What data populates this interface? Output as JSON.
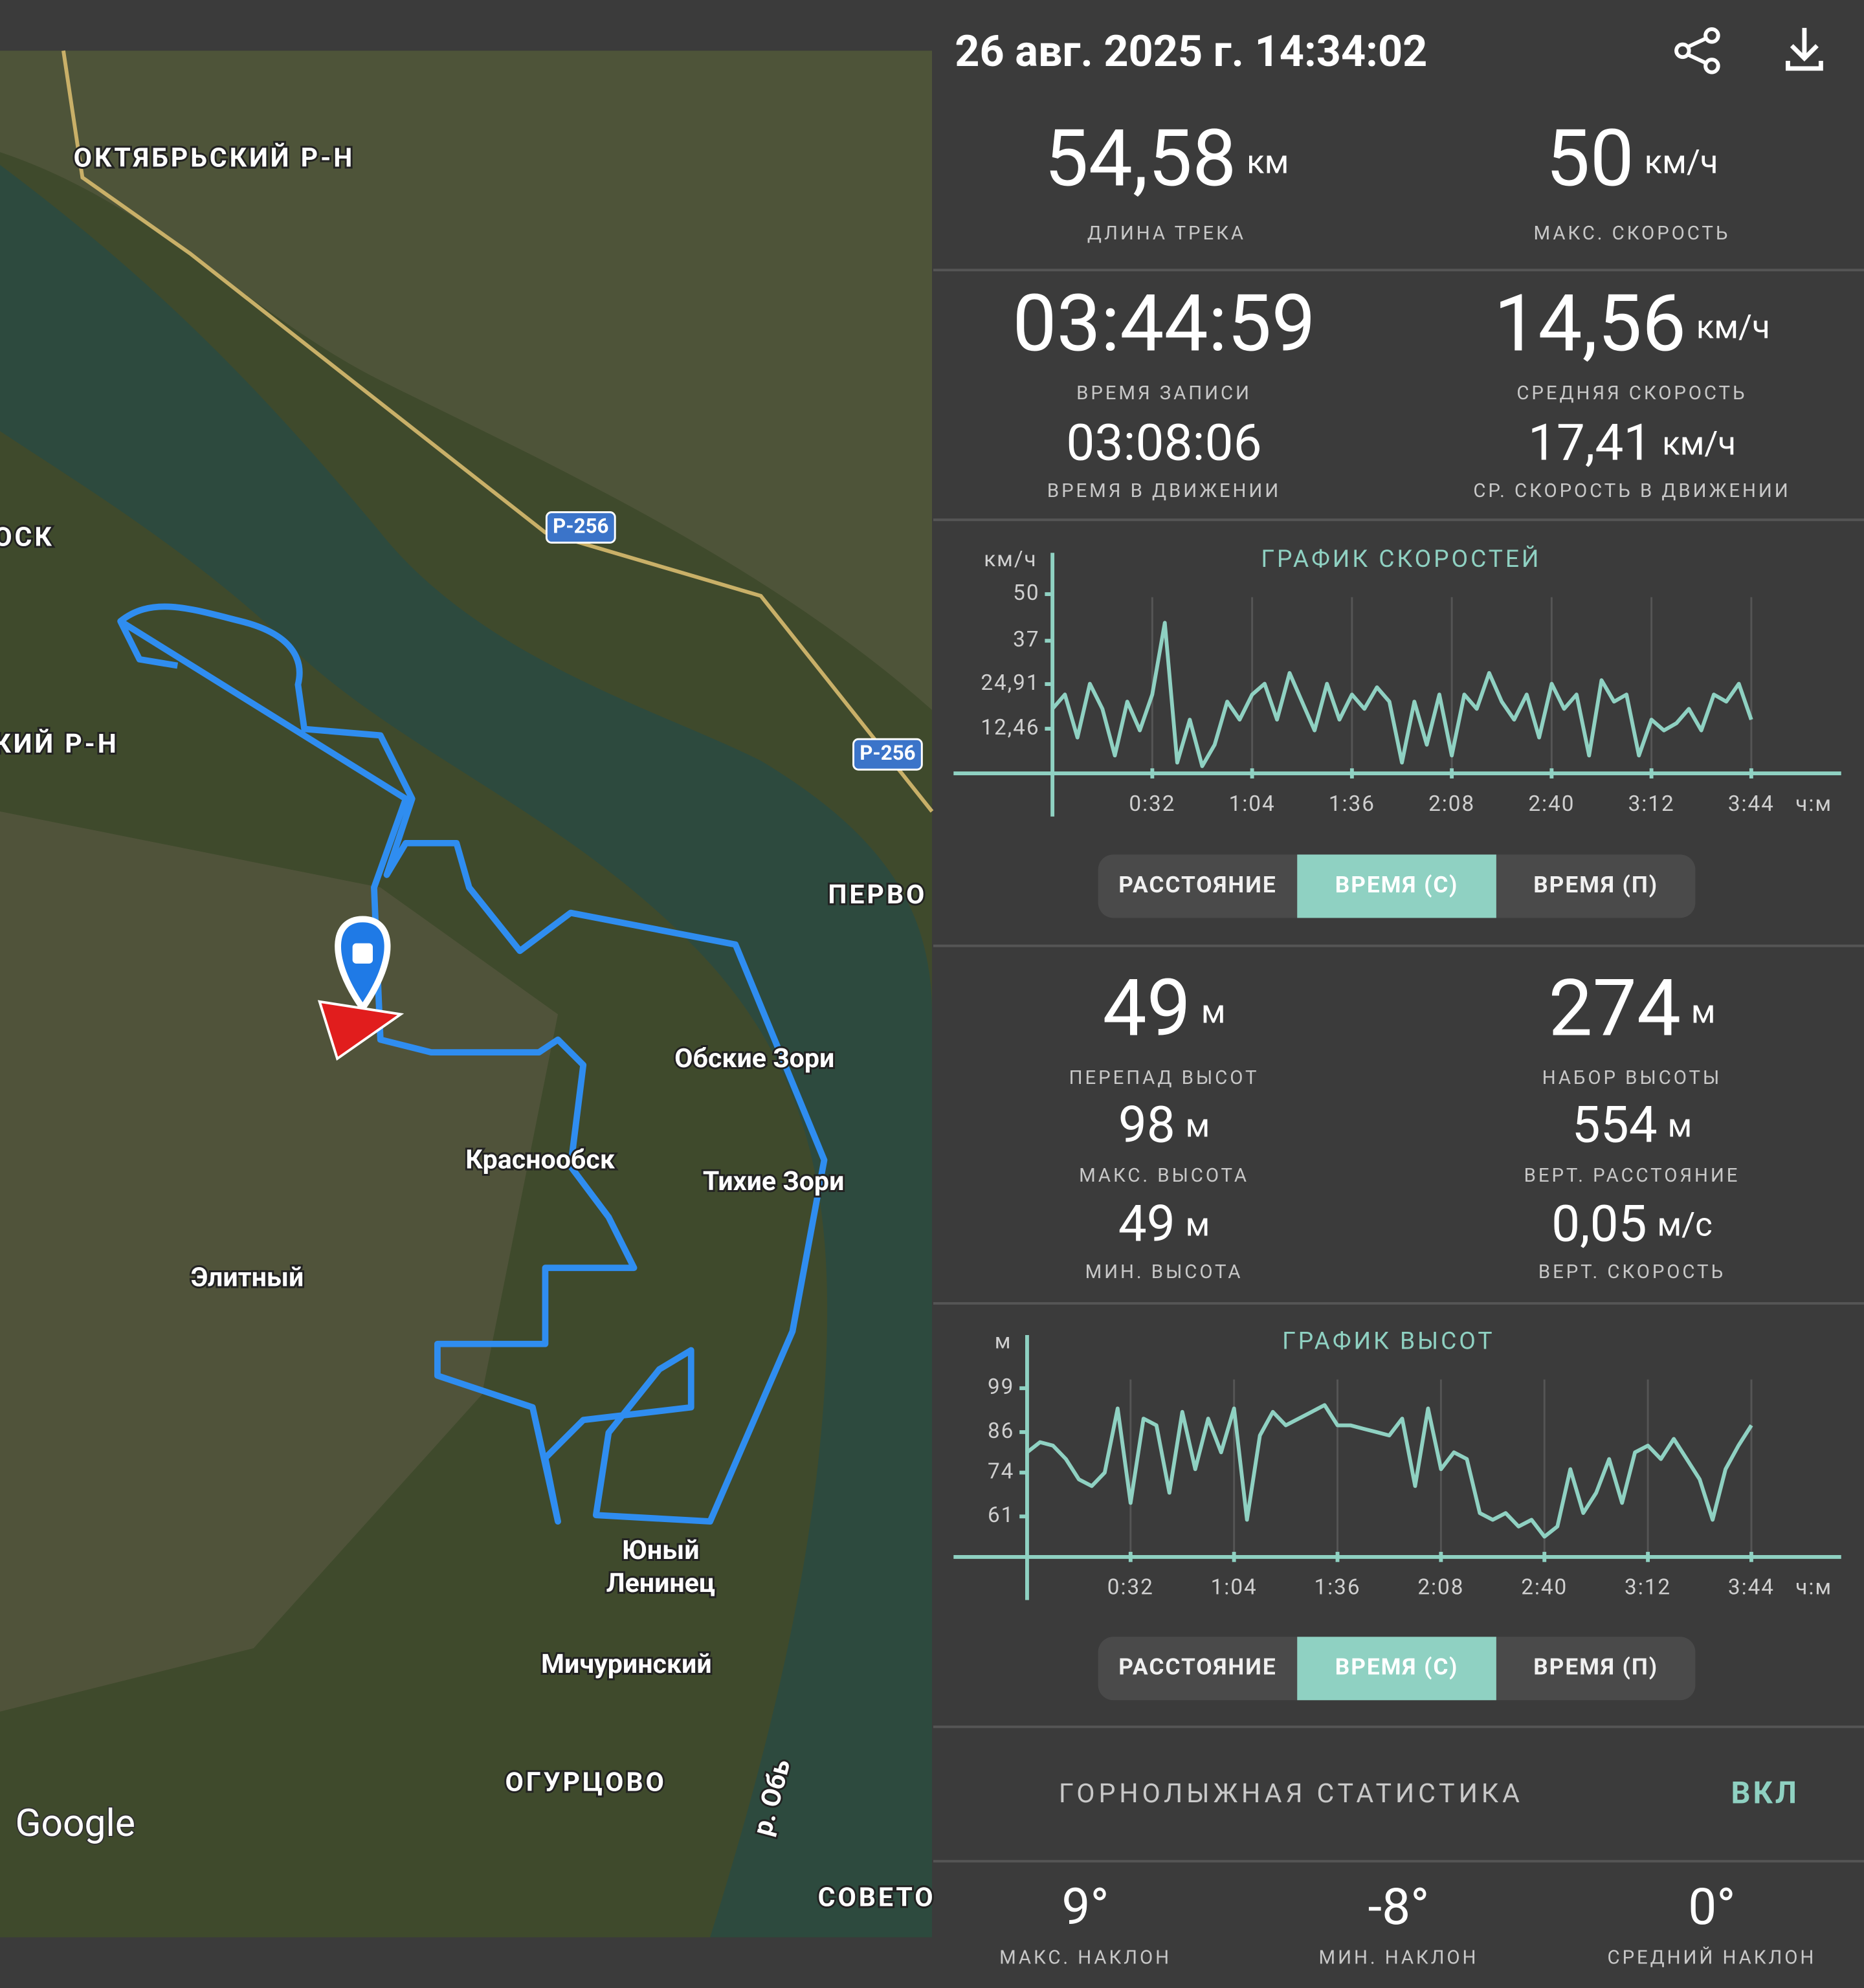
{
  "header": {
    "datetime": "26 авг. 2025 г. 14:34:02"
  },
  "map": {
    "labels": [
      "ОКТЯБРЬСКИЙ Р-Н",
      "ОСК",
      "КИЙ Р-Н",
      "ПЕРВО",
      "Обские Зори",
      "Краснообск",
      "Тихие Зори",
      "Элитный",
      "Юный",
      "Ленинец",
      "Мичуринский",
      "ОГУРЦОВО",
      "р. Обь",
      "СОВЕТО"
    ],
    "road_labels": [
      "Р-256",
      "Р-256"
    ],
    "logo": "Google"
  },
  "track_stats": [
    {
      "value": "54,58",
      "unit": "км",
      "label": "ДЛИНА ТРЕКА"
    },
    {
      "value": "50",
      "unit": "км/ч",
      "label": "МАКС. СКОРОСТЬ"
    },
    {
      "value": "03:44:59",
      "label": "ВРЕМЯ ЗАПИСИ"
    },
    {
      "value": "14,56",
      "unit": "км/ч",
      "label": "СРЕДНЯЯ СКОРОСТЬ"
    },
    {
      "value": "03:08:06",
      "label": "ВРЕМЯ В ДВИЖЕНИИ"
    },
    {
      "value": "17,41",
      "unit": "км/ч",
      "label": "СР. СКОРОСТЬ В ДВИЖЕНИИ"
    }
  ],
  "speed_chart": {
    "type": "line",
    "title": "ГРАФИК СКОРОСТЕЙ",
    "y_unit": "км/ч",
    "x_unit": "ч:м",
    "color": "#8fd1c2",
    "x": [
      0,
      4,
      8,
      12,
      16,
      20,
      24,
      28,
      32,
      36,
      40,
      44,
      48,
      52,
      56,
      60,
      64,
      68,
      72,
      76,
      80,
      84,
      88,
      92,
      96,
      100,
      104,
      108,
      112,
      116,
      120,
      124,
      128,
      132,
      136,
      140,
      144,
      148,
      152,
      156,
      160,
      164,
      168,
      172,
      176,
      180,
      184,
      188,
      192,
      196,
      200,
      204,
      208,
      212,
      216,
      220,
      224
    ],
    "values": [
      18,
      22,
      10,
      25,
      18,
      5,
      20,
      12,
      22,
      42,
      3,
      15,
      2,
      8,
      20,
      15,
      22,
      25,
      15,
      28,
      20,
      12,
      25,
      15,
      22,
      18,
      24,
      20,
      3,
      20,
      8,
      22,
      5,
      22,
      18,
      28,
      20,
      15,
      22,
      10,
      25,
      18,
      22,
      5,
      26,
      20,
      22,
      5,
      15,
      12,
      14,
      18,
      12,
      22,
      20,
      25,
      15
    ],
    "xlim": [
      0,
      252
    ],
    "ylim": [
      0,
      58
    ],
    "xticks": [
      {
        "value": 32,
        "label": "0:32"
      },
      {
        "value": 64,
        "label": "1:04"
      },
      {
        "value": 96,
        "label": "1:36"
      },
      {
        "value": 128,
        "label": "2:08"
      },
      {
        "value": 160,
        "label": "2:40"
      },
      {
        "value": 192,
        "label": "3:12"
      },
      {
        "value": 224,
        "label": "3:44"
      }
    ],
    "yticks": [
      {
        "value": 12.46,
        "label": "12,46"
      },
      {
        "value": 24.91,
        "label": "24,91"
      },
      37,
      50
    ],
    "grid": true
  },
  "speed_chart_modes": {
    "options": [
      "РАССТОЯНИЕ",
      "ВРЕМЯ (С)",
      "ВРЕМЯ (П)"
    ],
    "selected": 1
  },
  "elevation_stats": [
    {
      "value": "49",
      "unit": "м",
      "label": "ПЕРЕПАД ВЫСОТ"
    },
    {
      "value": "274",
      "unit": "м",
      "label": "НАБОР ВЫСОТЫ"
    },
    {
      "value": "98",
      "unit": "м",
      "label": "МАКС. ВЫСОТА"
    },
    {
      "value": "554",
      "unit": "м",
      "label": "ВЕРТ. РАССТОЯНИЕ"
    },
    {
      "value": "49",
      "unit": "м",
      "label": "МИН. ВЫСОТА"
    },
    {
      "value": "0,05",
      "unit": "м/с",
      "label": "ВЕРТ. СКОРОСТЬ"
    }
  ],
  "elevation_chart": {
    "type": "line",
    "title": "ГРАФИК ВЫСОТ",
    "y_unit": "м",
    "x_unit": "ч:м",
    "color": "#8fd1c2",
    "x": [
      0,
      4,
      8,
      12,
      16,
      20,
      24,
      28,
      32,
      36,
      40,
      44,
      48,
      52,
      56,
      60,
      64,
      68,
      72,
      76,
      80,
      84,
      88,
      92,
      96,
      100,
      104,
      108,
      112,
      116,
      120,
      124,
      128,
      132,
      136,
      140,
      144,
      148,
      152,
      156,
      160,
      164,
      168,
      172,
      176,
      180,
      184,
      188,
      192,
      196,
      200,
      204,
      208,
      212,
      216,
      220,
      224
    ],
    "values": [
      80,
      83,
      82,
      78,
      72,
      70,
      74,
      93,
      65,
      90,
      88,
      68,
      92,
      75,
      90,
      80,
      93,
      60,
      85,
      92,
      88,
      90,
      92,
      94,
      88,
      88,
      87,
      86,
      85,
      90,
      70,
      93,
      75,
      80,
      78,
      62,
      60,
      62,
      58,
      60,
      55,
      58,
      75,
      62,
      68,
      78,
      65,
      80,
      82,
      78,
      84,
      78,
      72,
      60,
      75,
      82,
      88
    ],
    "xlim": [
      0,
      251
    ],
    "ylim": [
      49,
      111
    ],
    "xticks": [
      {
        "value": 32,
        "label": "0:32"
      },
      {
        "value": 64,
        "label": "1:04"
      },
      {
        "value": 96,
        "label": "1:36"
      },
      {
        "value": 128,
        "label": "2:08"
      },
      {
        "value": 160,
        "label": "2:40"
      },
      {
        "value": 192,
        "label": "3:12"
      },
      {
        "value": 224,
        "label": "3:44"
      }
    ],
    "yticks": [
      61,
      74,
      86,
      99
    ],
    "grid": true
  },
  "elevation_chart_modes": {
    "options": [
      "РАССТОЯНИЕ",
      "ВРЕМЯ (С)",
      "ВРЕМЯ (П)"
    ],
    "selected": 1
  },
  "ski_stats": {
    "title": "ГОРНОЛЫЖНАЯ СТАТИСТИКА",
    "toggle": "ВКЛ",
    "items": [
      {
        "value": "9°",
        "label": "МАКС. НАКЛОН"
      },
      {
        "value": "-8°",
        "label": "МИН. НАКЛОН"
      },
      {
        "value": "0°",
        "label": "СРЕДНИЙ НАКЛОН"
      }
    ]
  }
}
